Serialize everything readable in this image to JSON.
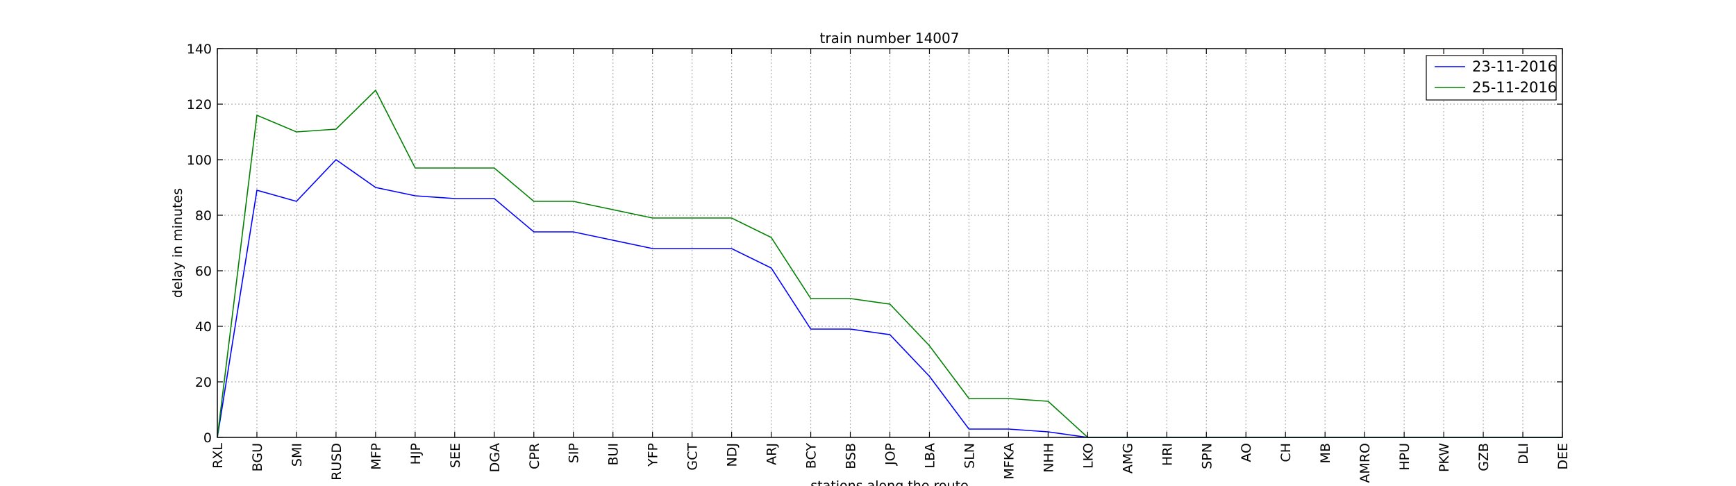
{
  "chart_data": {
    "type": "line",
    "title": "train number 14007",
    "xlabel": "stations along the route",
    "ylabel": "delay in minutes",
    "ylim": [
      0,
      140
    ],
    "yticks": [
      0,
      20,
      40,
      60,
      80,
      100,
      120,
      140
    ],
    "grid": true,
    "legend_position": "top-right",
    "categories": [
      "RXL",
      "BGU",
      "SMI",
      "RUSD",
      "MFP",
      "HJP",
      "SEE",
      "DGA",
      "CPR",
      "SIP",
      "BUI",
      "YFP",
      "GCT",
      "NDJ",
      "ARJ",
      "BCY",
      "BSB",
      "JOP",
      "LBA",
      "SLN",
      "MFKA",
      "NHH",
      "LKO",
      "AMG",
      "HRI",
      "SPN",
      "AO",
      "CH",
      "MB",
      "AMRO",
      "HPU",
      "PKW",
      "GZB",
      "DLI",
      "DEE"
    ],
    "series": [
      {
        "name": "23-11-2016",
        "color": "#0000ff",
        "values": [
          0,
          89,
          85,
          100,
          90,
          87,
          86,
          86,
          74,
          74,
          71,
          68,
          68,
          68,
          61,
          39,
          39,
          37,
          22,
          3,
          3,
          2,
          0,
          0,
          0,
          0,
          0,
          0,
          0,
          0,
          0,
          0,
          0,
          0,
          0
        ]
      },
      {
        "name": "25-11-2016",
        "color": "#008000",
        "values": [
          0,
          116,
          110,
          111,
          125,
          97,
          97,
          97,
          85,
          85,
          82,
          79,
          79,
          79,
          72,
          50,
          50,
          48,
          33,
          14,
          14,
          13,
          0,
          0,
          0,
          0,
          0,
          0,
          0,
          0,
          0,
          0,
          0,
          0,
          0
        ]
      }
    ]
  }
}
